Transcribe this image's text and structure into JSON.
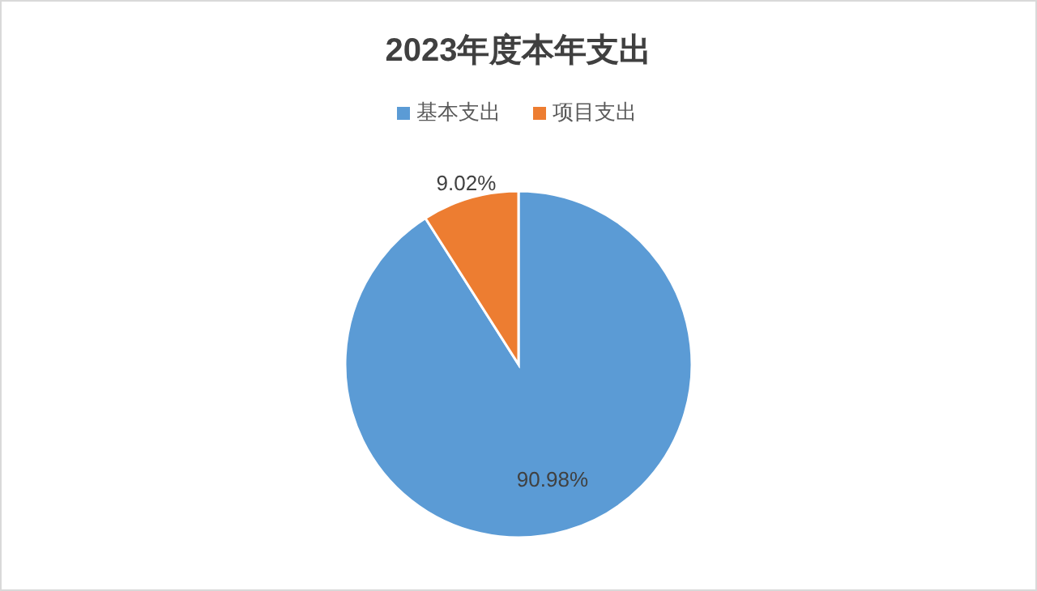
{
  "chart_data": {
    "type": "pie",
    "title": "2023年度本年支出",
    "categories": [
      "基本支出",
      "项目支出"
    ],
    "values": [
      90.98,
      9.02
    ],
    "colors": [
      "#5b9bd5",
      "#ed7d31"
    ],
    "value_labels": [
      "90.98%",
      "9.02%"
    ],
    "legend": "top"
  }
}
